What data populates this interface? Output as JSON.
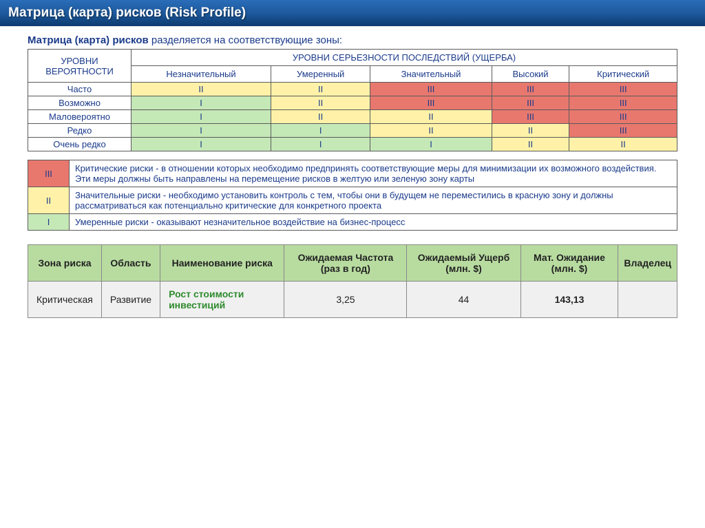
{
  "header": {
    "title": "Матрица (карта) рисков (Risk Profile)"
  },
  "intro": {
    "bold": "Матрица (карта) рисков",
    "rest": " разделяется на соответствующие зоны:"
  },
  "matrix": {
    "rowHeader": "УРОВНИ ВЕРОЯТНОСТИ",
    "colHeader": "УРОВНИ СЕРЬЕЗНОСТИ ПОСЛЕДСТВИЙ (УЩЕРБА)",
    "severityLevels": [
      "Незначительный",
      "Умеренный",
      "Значительный",
      "Высокий",
      "Критический"
    ],
    "rows": [
      {
        "label": "Часто",
        "cells": [
          {
            "v": "II",
            "c": "y"
          },
          {
            "v": "II",
            "c": "y"
          },
          {
            "v": "III",
            "c": "r"
          },
          {
            "v": "III",
            "c": "r"
          },
          {
            "v": "III",
            "c": "r"
          }
        ]
      },
      {
        "label": "Возможно",
        "cells": [
          {
            "v": "I",
            "c": "g"
          },
          {
            "v": "II",
            "c": "y"
          },
          {
            "v": "III",
            "c": "r"
          },
          {
            "v": "III",
            "c": "r"
          },
          {
            "v": "III",
            "c": "r"
          }
        ]
      },
      {
        "label": "Маловероятно",
        "cells": [
          {
            "v": "I",
            "c": "g"
          },
          {
            "v": "II",
            "c": "y"
          },
          {
            "v": "II",
            "c": "y"
          },
          {
            "v": "III",
            "c": "r"
          },
          {
            "v": "III",
            "c": "r"
          }
        ]
      },
      {
        "label": "Редко",
        "cells": [
          {
            "v": "I",
            "c": "g"
          },
          {
            "v": "I",
            "c": "g"
          },
          {
            "v": "II",
            "c": "y"
          },
          {
            "v": "II",
            "c": "y"
          },
          {
            "v": "III",
            "c": "r"
          }
        ]
      },
      {
        "label": "Очень редко",
        "cells": [
          {
            "v": "I",
            "c": "g"
          },
          {
            "v": "I",
            "c": "g"
          },
          {
            "v": "I",
            "c": "g"
          },
          {
            "v": "II",
            "c": "y"
          },
          {
            "v": "II",
            "c": "y"
          }
        ]
      }
    ]
  },
  "legend": [
    {
      "code": "III",
      "color": "r",
      "text": "Критические риски - в отношении которых необходимо предпринять соответствующие меры для минимизации их возможного воздействия. Эти меры должны быть направлены на перемещение рисков в желтую или зеленую зону карты"
    },
    {
      "code": "II",
      "color": "y",
      "text": "Значительные риски - необходимо установить контроль с тем, чтобы они в будущем не переместились в красную зону и должны рассматриваться как потенциально критические для конкретного проекта"
    },
    {
      "code": "I",
      "color": "g",
      "text": "Умеренные риски - оказывают незначительное воздействие на бизнес-процесс"
    }
  ],
  "dataTable": {
    "columns": [
      "Зона риска",
      "Область",
      "Наименование риска",
      "Ожидаемая Частота (раз в год)",
      "Ожидаемый Ущерб (млн. $)",
      "Мат. Ожидание (млн. $)",
      "Владелец"
    ],
    "row": {
      "zone": "Критическая",
      "area": "Развитие",
      "name": "Рост стоимости инвестиций",
      "freq": "3,25",
      "loss": "44",
      "expect": "143,13",
      "owner": ""
    }
  },
  "colors": {
    "g": "#c5e8b7",
    "y": "#fff2a8",
    "r": "#e8786e",
    "headerGrad": [
      "#2a6db8",
      "#0d3a6e"
    ],
    "tableHeader": "#b8dca0",
    "text": "#1a3a8a"
  }
}
